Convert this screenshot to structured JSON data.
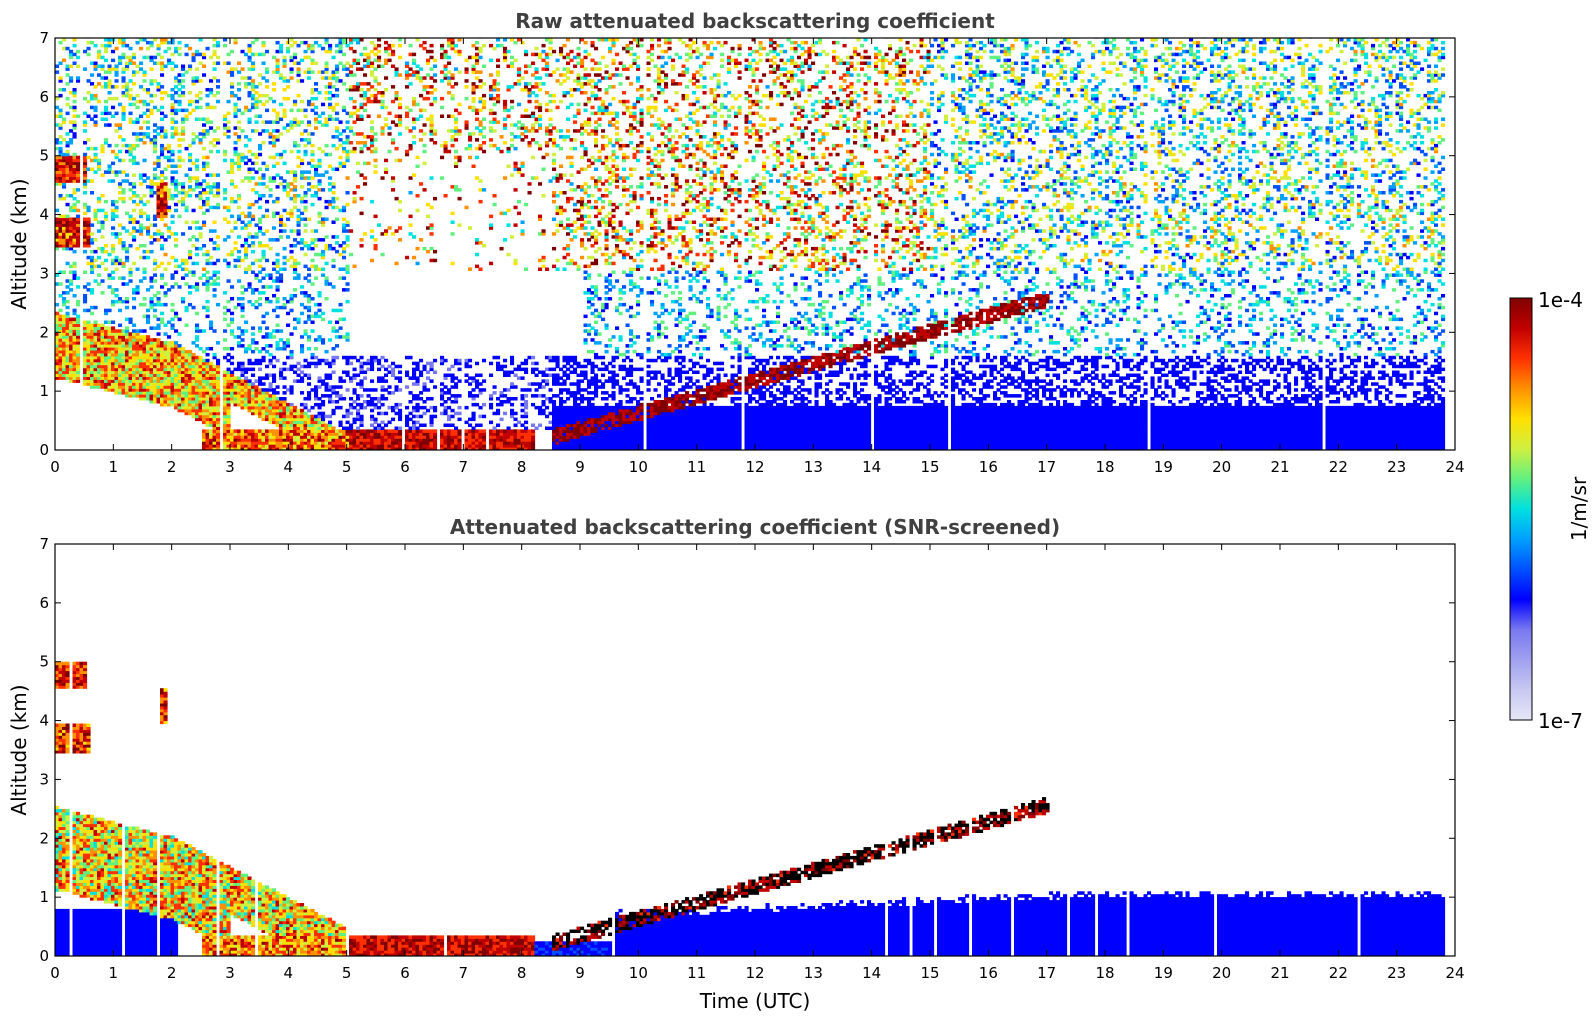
{
  "chart_data": [
    {
      "type": "heatmap",
      "title": "Raw attenuated backscattering coefficient",
      "xlabel": "",
      "ylabel": "Altitude (km)",
      "xlim": [
        0,
        24
      ],
      "ylim": [
        0,
        7
      ],
      "x_ticks": [
        "0",
        "1",
        "2",
        "3",
        "4",
        "5",
        "6",
        "7",
        "8",
        "9",
        "10",
        "11",
        "12",
        "13",
        "14",
        "15",
        "16",
        "17",
        "18",
        "19",
        "20",
        "21",
        "22",
        "23",
        "24"
      ],
      "y_ticks": [
        "0",
        "1",
        "2",
        "3",
        "4",
        "5",
        "6",
        "7"
      ],
      "data_end_hour": 23.8,
      "grid": false,
      "features": [
        {
          "name": "boundary-layer-aerosol",
          "time_utc": [
            0,
            5
          ],
          "altitude_km": [
            1.8,
            0.1
          ],
          "level": "high"
        },
        {
          "name": "nocturnal-layer",
          "time_utc": [
            5,
            8
          ],
          "altitude_km": [
            0.35,
            0.25
          ],
          "level": "very-high"
        },
        {
          "name": "growing-cloud-layer",
          "time_utc": [
            8.5,
            17
          ],
          "altitude_km": [
            0.2,
            2.55
          ],
          "level": "saturated"
        },
        {
          "name": "upper-noise",
          "time_utc": [
            0,
            23.8
          ],
          "altitude_km": [
            3,
            7
          ],
          "level": "noise"
        }
      ]
    },
    {
      "type": "heatmap",
      "title": "Attenuated backscattering coefficient (SNR-screened)",
      "xlabel": "Time (UTC)",
      "ylabel": "Altitude (km)",
      "xlim": [
        0,
        24
      ],
      "ylim": [
        0,
        7
      ],
      "x_ticks": [
        "0",
        "1",
        "2",
        "3",
        "4",
        "5",
        "6",
        "7",
        "8",
        "9",
        "10",
        "11",
        "12",
        "13",
        "14",
        "15",
        "16",
        "17",
        "18",
        "19",
        "20",
        "21",
        "22",
        "23",
        "24"
      ],
      "y_ticks": [
        "0",
        "1",
        "2",
        "3",
        "4",
        "5",
        "6",
        "7"
      ],
      "data_end_hour": 23.8,
      "grid": false,
      "features": [
        {
          "name": "low-background-layer",
          "time_utc": [
            0,
            2.1
          ],
          "altitude_km": [
            0,
            0.8
          ],
          "level": "low"
        },
        {
          "name": "boundary-layer-aerosol",
          "time_utc": [
            0,
            5
          ],
          "altitude_km": [
            2.0,
            0.1
          ],
          "level": "high"
        },
        {
          "name": "nocturnal-layer",
          "time_utc": [
            5,
            8
          ],
          "altitude_km": [
            0.35,
            0.25
          ],
          "level": "very-high"
        },
        {
          "name": "growing-cloud-layer",
          "time_utc": [
            8.5,
            17
          ],
          "altitude_km": [
            0.2,
            2.55
          ],
          "level": "saturated"
        },
        {
          "name": "daytime-mixed-layer",
          "time_utc": [
            9.5,
            23.8
          ],
          "altitude_km": [
            0.6,
            1.0
          ],
          "level": "low"
        }
      ]
    }
  ],
  "colorbar": {
    "max_label": "1e-4",
    "min_label": "1e-7",
    "unit_label": "1/m/sr",
    "scale": "log",
    "colors": [
      "#e6e6f7",
      "#c8c8f2",
      "#a0a0f0",
      "#7878f0",
      "#0000ff",
      "#0050ff",
      "#00a0ff",
      "#00e0e0",
      "#60f080",
      "#d0f040",
      "#ffe000",
      "#ff9000",
      "#ff3000",
      "#c00000",
      "#7f0000"
    ]
  }
}
